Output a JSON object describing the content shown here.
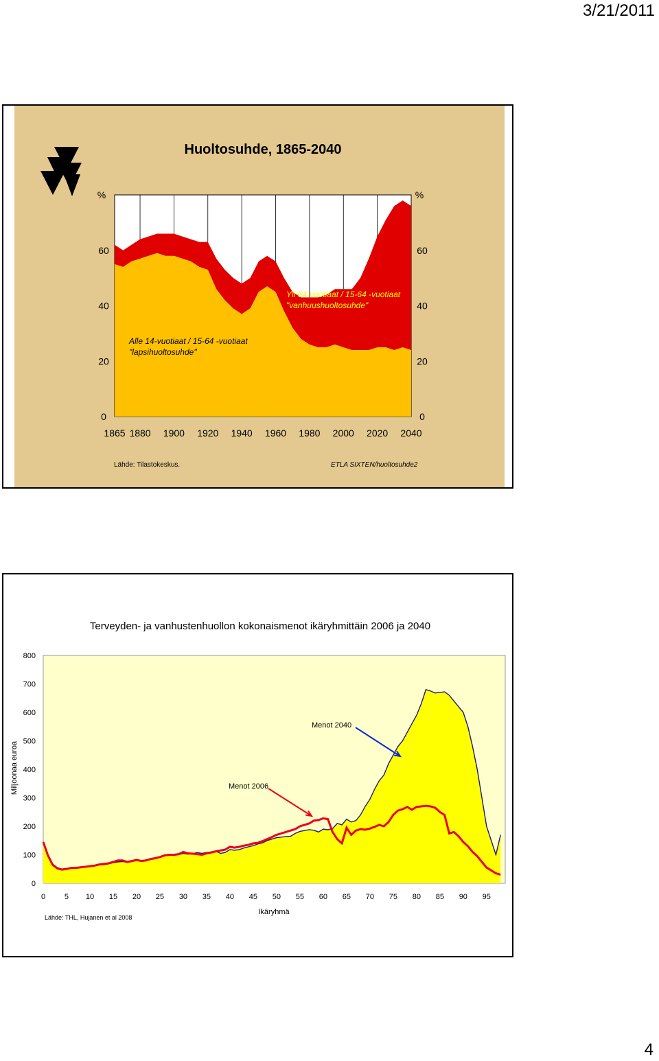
{
  "page": {
    "date": "3/21/2011",
    "number": "4"
  },
  "chart_data": [
    {
      "type": "area",
      "title": "Huoltosuhde, 1865-2040",
      "ylabel_left": "%",
      "ylabel_right": "%",
      "yticks": [
        0,
        20,
        40,
        60
      ],
      "ylim": [
        0,
        80
      ],
      "xlim": [
        1865,
        2040
      ],
      "xticks": [
        1865,
        1880,
        1900,
        1920,
        1940,
        1960,
        1980,
        2000,
        2020,
        2040
      ],
      "source_left": "Lähde:   Tilastokeskus.",
      "source_right": "ETLA SIXTEN/huoltosuhde2",
      "annotation_old": [
        "Yli 64-vuotiaat / 15-64 -vuotiaat",
        "\"vanhuushuoltosuhde\""
      ],
      "annotation_child": [
        "Alle 14-vuotiaat / 15-64 -vuotiaat",
        "\"lapsihuoltosuhde\""
      ],
      "colors": {
        "child": "#ffc000",
        "old": "#e00000",
        "background": "#e3c890"
      },
      "series": [
        {
          "name": "lapsihuoltosuhde",
          "x": [
            1865,
            1870,
            1875,
            1880,
            1885,
            1890,
            1895,
            1900,
            1905,
            1910,
            1915,
            1920,
            1925,
            1930,
            1935,
            1940,
            1945,
            1950,
            1955,
            1960,
            1965,
            1970,
            1975,
            1980,
            1985,
            1990,
            1995,
            2000,
            2005,
            2010,
            2015,
            2020,
            2025,
            2030,
            2035,
            2040
          ],
          "values": [
            55,
            54,
            56,
            57,
            58,
            59,
            58,
            58,
            57,
            56,
            54,
            53,
            46,
            42,
            39,
            37,
            39,
            45,
            47,
            45,
            38,
            32,
            28,
            26,
            25,
            25,
            26,
            25,
            24,
            24,
            24,
            25,
            25,
            24,
            25,
            24
          ]
        },
        {
          "name": "vanhuushuoltosuhde",
          "x": [
            1865,
            1870,
            1875,
            1880,
            1885,
            1890,
            1895,
            1900,
            1905,
            1910,
            1915,
            1920,
            1925,
            1930,
            1935,
            1940,
            1945,
            1950,
            1955,
            1960,
            1965,
            1970,
            1975,
            1980,
            1985,
            1990,
            1995,
            2000,
            2005,
            2010,
            2015,
            2020,
            2025,
            2030,
            2035,
            2040
          ],
          "values": [
            7,
            6,
            6,
            7,
            7,
            7,
            8,
            8,
            8,
            8,
            9,
            10,
            11,
            11,
            11,
            11,
            11,
            11,
            11,
            11,
            12,
            13,
            15,
            17,
            18,
            19,
            20,
            21,
            22,
            26,
            33,
            40,
            46,
            52,
            53,
            52
          ]
        }
      ]
    },
    {
      "type": "area",
      "title": "Terveyden- ja vanhustenhuollon kokonaismenot ikäryhmittäin 2006 ja 2040",
      "ylabel": "Miljoonaa euroa",
      "xlabel": "Ikäryhmä",
      "yticks": [
        0,
        100,
        200,
        300,
        400,
        500,
        600,
        700,
        800
      ],
      "ylim": [
        0,
        800
      ],
      "xticks": [
        0,
        5,
        10,
        15,
        20,
        25,
        30,
        35,
        40,
        45,
        50,
        55,
        60,
        65,
        70,
        75,
        80,
        85,
        90,
        95
      ],
      "xlim": [
        0,
        99
      ],
      "source": "Lähde: THL, Hujanen et al 2008",
      "colors": {
        "fill": "#ffff00",
        "background": "#ffffcc",
        "menot2006": "#e8001c",
        "menot2040": "#1a1a80",
        "arrow2006": "#e8001c",
        "arrow2040": "#0a28d8"
      },
      "annotations": {
        "menot2040": "Menot 2040",
        "menot2006": "Menot 2006"
      },
      "series": [
        {
          "name": "Menot 2040",
          "values": [
            145,
            100,
            68,
            55,
            50,
            52,
            55,
            55,
            57,
            58,
            60,
            62,
            65,
            65,
            68,
            72,
            75,
            76,
            74,
            76,
            80,
            78,
            82,
            85,
            88,
            92,
            96,
            98,
            98,
            100,
            105,
            102,
            104,
            108,
            105,
            108,
            110,
            112,
            105,
            108,
            118,
            116,
            118,
            124,
            128,
            132,
            138,
            142,
            150,
            155,
            160,
            162,
            164,
            165,
            175,
            182,
            185,
            188,
            186,
            180,
            190,
            188,
            192,
            210,
            205,
            225,
            215,
            220,
            240,
            270,
            295,
            330,
            360,
            380,
            420,
            450,
            480,
            500,
            530,
            560,
            590,
            630,
            680,
            675,
            668,
            670,
            672,
            660,
            640,
            620,
            600,
            550,
            480,
            400,
            300,
            200,
            150,
            100,
            170
          ]
        },
        {
          "name": "Menot 2006",
          "values": [
            145,
            98,
            65,
            52,
            48,
            50,
            54,
            54,
            56,
            58,
            60,
            62,
            66,
            68,
            70,
            75,
            80,
            80,
            75,
            78,
            82,
            78,
            80,
            85,
            88,
            92,
            98,
            100,
            100,
            102,
            110,
            105,
            104,
            102,
            100,
            105,
            108,
            112,
            115,
            118,
            128,
            125,
            128,
            132,
            135,
            140,
            142,
            148,
            155,
            162,
            170,
            175,
            180,
            185,
            190,
            200,
            205,
            210,
            220,
            222,
            228,
            225,
            180,
            155,
            140,
            195,
            170,
            185,
            190,
            188,
            192,
            198,
            205,
            200,
            215,
            240,
            255,
            260,
            268,
            258,
            268,
            270,
            272,
            270,
            265,
            250,
            240,
            175,
            180,
            165,
            145,
            130,
            110,
            95,
            75,
            55,
            45,
            35,
            30
          ]
        }
      ]
    }
  ]
}
